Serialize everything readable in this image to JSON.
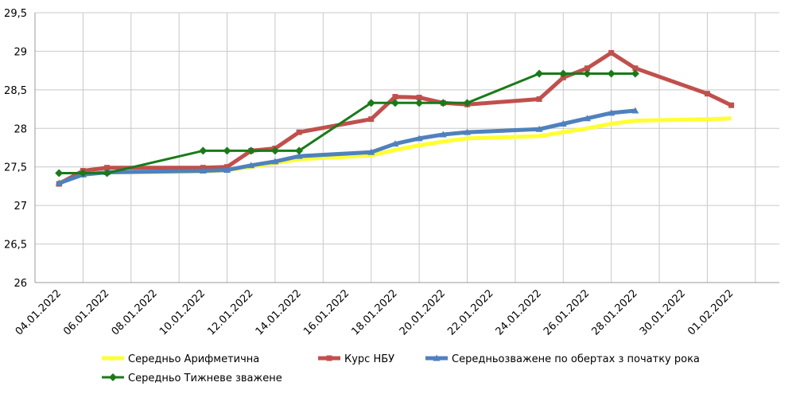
{
  "chart_data": {
    "type": "line",
    "xlabel": "",
    "ylabel": "",
    "x_ticks": [
      "04.01.2022",
      "06.01.2022",
      "08.01.2022",
      "10.01.2022",
      "12.01.2022",
      "14.01.2022",
      "16.01.2022",
      "18.01.2022",
      "20.01.2022",
      "22.01.2022",
      "24.01.2022",
      "26.01.2022",
      "28.01.2022",
      "30.01.2022",
      "01.02.2022"
    ],
    "y_ticks": [
      "26",
      "26,5",
      "27",
      "27,5",
      "28",
      "28,5",
      "29",
      "29,5"
    ],
    "ylim": [
      26,
      29.5
    ],
    "grid": true,
    "legend_position": "bottom",
    "series": [
      {
        "name": "Середньо Арифметична",
        "color": "#ffff33",
        "marker": "none",
        "points": [
          [
            "04.01.2022",
            27.3
          ],
          [
            "05.01.2022",
            27.4
          ],
          [
            "06.01.2022",
            27.43
          ],
          [
            "10.01.2022",
            27.44
          ],
          [
            "11.01.2022",
            27.46
          ],
          [
            "12.01.2022",
            27.5
          ],
          [
            "13.01.2022",
            27.55
          ],
          [
            "14.01.2022",
            27.6
          ],
          [
            "17.01.2022",
            27.65
          ],
          [
            "18.01.2022",
            27.72
          ],
          [
            "19.01.2022",
            27.78
          ],
          [
            "20.01.2022",
            27.83
          ],
          [
            "21.01.2022",
            27.87
          ],
          [
            "24.01.2022",
            27.9
          ],
          [
            "25.01.2022",
            27.95
          ],
          [
            "26.01.2022",
            28.0
          ],
          [
            "27.01.2022",
            28.06
          ],
          [
            "28.01.2022",
            28.1
          ],
          [
            "31.01.2022",
            28.12
          ],
          [
            "01.02.2022",
            28.13
          ]
        ]
      },
      {
        "name": "Курс НБУ",
        "color": "#c0504d",
        "marker": "square",
        "points": [
          [
            "04.01.2022",
            27.28
          ],
          [
            "05.01.2022",
            27.45
          ],
          [
            "06.01.2022",
            27.49
          ],
          [
            "10.01.2022",
            27.49
          ],
          [
            "11.01.2022",
            27.5
          ],
          [
            "12.01.2022",
            27.71
          ],
          [
            "13.01.2022",
            27.74
          ],
          [
            "14.01.2022",
            27.95
          ],
          [
            "17.01.2022",
            28.12
          ],
          [
            "18.01.2022",
            28.41
          ],
          [
            "19.01.2022",
            28.4
          ],
          [
            "20.01.2022",
            28.33
          ],
          [
            "21.01.2022",
            28.31
          ],
          [
            "24.01.2022",
            28.38
          ],
          [
            "25.01.2022",
            28.66
          ],
          [
            "26.01.2022",
            28.78
          ],
          [
            "27.01.2022",
            28.98
          ],
          [
            "28.01.2022",
            28.78
          ],
          [
            "31.01.2022",
            28.45
          ],
          [
            "01.02.2022",
            28.3
          ]
        ]
      },
      {
        "name": "Середньозважене по обертах з початку рока",
        "color": "#4f81bd",
        "marker": "triangle",
        "points": [
          [
            "04.01.2022",
            27.29
          ],
          [
            "05.01.2022",
            27.4
          ],
          [
            "06.01.2022",
            27.43
          ],
          [
            "10.01.2022",
            27.45
          ],
          [
            "11.01.2022",
            27.46
          ],
          [
            "12.01.2022",
            27.52
          ],
          [
            "13.01.2022",
            27.57
          ],
          [
            "14.01.2022",
            27.64
          ],
          [
            "17.01.2022",
            27.69
          ],
          [
            "18.01.2022",
            27.8
          ],
          [
            "19.01.2022",
            27.87
          ],
          [
            "20.01.2022",
            27.92
          ],
          [
            "21.01.2022",
            27.95
          ],
          [
            "24.01.2022",
            27.99
          ],
          [
            "25.01.2022",
            28.06
          ],
          [
            "26.01.2022",
            28.13
          ],
          [
            "27.01.2022",
            28.2
          ],
          [
            "28.01.2022",
            28.23
          ]
        ]
      },
      {
        "name": "Середньо Тижневе зважене",
        "color": "#1a7a1a",
        "marker": "diamond",
        "points": [
          [
            "04.01.2022",
            27.42
          ],
          [
            "05.01.2022",
            27.42
          ],
          [
            "06.01.2022",
            27.42
          ],
          [
            "10.01.2022",
            27.71
          ],
          [
            "11.01.2022",
            27.71
          ],
          [
            "12.01.2022",
            27.71
          ],
          [
            "13.01.2022",
            27.71
          ],
          [
            "14.01.2022",
            27.71
          ],
          [
            "17.01.2022",
            28.33
          ],
          [
            "18.01.2022",
            28.33
          ],
          [
            "19.01.2022",
            28.33
          ],
          [
            "20.01.2022",
            28.33
          ],
          [
            "21.01.2022",
            28.33
          ],
          [
            "24.01.2022",
            28.71
          ],
          [
            "25.01.2022",
            28.71
          ],
          [
            "26.01.2022",
            28.71
          ],
          [
            "27.01.2022",
            28.71
          ],
          [
            "28.01.2022",
            28.71
          ]
        ]
      }
    ]
  }
}
